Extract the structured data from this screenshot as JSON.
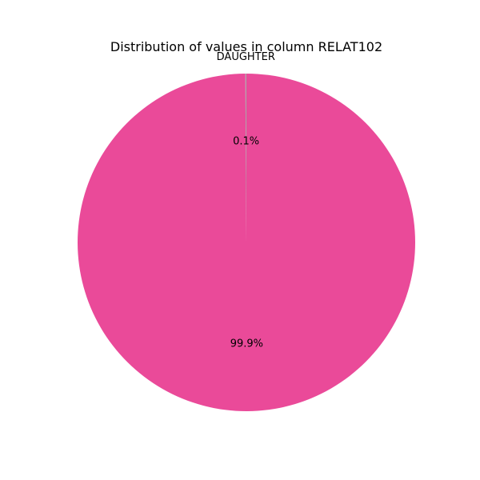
{
  "chart_data": {
    "type": "pie",
    "title": "Distribution of values in column RELAT102",
    "slices": [
      {
        "label": "DAUGHTER",
        "value": 0.1,
        "pct_label": "0.1%",
        "color": "#a6a6a6"
      },
      {
        "label": "",
        "value": 99.9,
        "pct_label": "99.9%",
        "color": "#ea4a99"
      }
    ],
    "start_angle_deg": 90,
    "direction": "counterclockwise"
  }
}
